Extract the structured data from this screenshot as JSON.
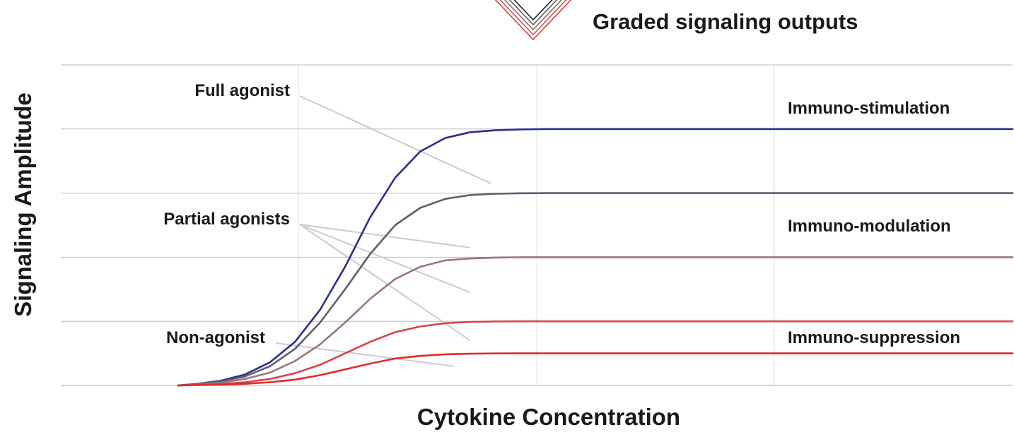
{
  "chart_data": {
    "type": "line",
    "title": "Graded signaling outputs",
    "xlabel": "Cytokine Concentration",
    "ylabel": "Signaling Amplitude",
    "xlim": [
      0,
      1
    ],
    "ylim": [
      0,
      5
    ],
    "grid": true,
    "axis_ticks": false,
    "x_curve": [
      0,
      0.02,
      0.05,
      0.08,
      0.11,
      0.14,
      0.17,
      0.2,
      0.23,
      0.26,
      0.29,
      0.32,
      0.35,
      0.38,
      0.41,
      0.44,
      0.47,
      0.5,
      0.53,
      0.56,
      0.59,
      0.62,
      0.65,
      0.68,
      0.71,
      0.74,
      0.77,
      0.8,
      0.85,
      0.9,
      0.95,
      1.0
    ],
    "series": [
      {
        "key": "full",
        "color": "#2a2f8a"
      },
      {
        "key": "partial1",
        "color": "#5e5e6e"
      },
      {
        "key": "partial2",
        "color": "#9b7676"
      },
      {
        "key": "partial3",
        "color": "#d8434a"
      },
      {
        "key": "non",
        "color": "#e02a2a"
      }
    ],
    "series_values": [
      [
        0,
        0.02,
        0.07,
        0.17,
        0.36,
        0.68,
        1.18,
        1.85,
        2.62,
        3.24,
        3.65,
        3.86,
        3.95,
        3.98,
        3.995,
        4,
        4,
        4,
        4,
        4,
        4,
        4,
        4,
        4,
        4,
        4,
        4,
        4,
        4,
        4,
        4,
        4
      ],
      [
        0,
        0.02,
        0.06,
        0.14,
        0.3,
        0.57,
        0.98,
        1.5,
        2.05,
        2.5,
        2.77,
        2.91,
        2.97,
        2.99,
        2.998,
        3,
        3,
        3,
        3,
        3,
        3,
        3,
        3,
        3,
        3,
        3,
        3,
        3,
        3,
        3,
        3,
        3
      ],
      [
        0,
        0.01,
        0.04,
        0.1,
        0.2,
        0.38,
        0.64,
        0.98,
        1.35,
        1.66,
        1.85,
        1.95,
        1.98,
        1.995,
        2,
        2,
        2,
        2,
        2,
        2,
        2,
        2,
        2,
        2,
        2,
        2,
        2,
        2,
        2,
        2,
        2,
        2
      ],
      [
        0,
        0.01,
        0.02,
        0.05,
        0.1,
        0.19,
        0.32,
        0.5,
        0.68,
        0.83,
        0.92,
        0.97,
        0.99,
        0.998,
        1,
        1,
        1,
        1,
        1,
        1,
        1,
        1,
        1,
        1,
        1,
        1,
        1,
        1,
        1,
        1,
        1,
        1
      ],
      [
        0,
        0.005,
        0.01,
        0.025,
        0.05,
        0.09,
        0.16,
        0.25,
        0.34,
        0.42,
        0.46,
        0.485,
        0.495,
        0.499,
        0.5,
        0.5,
        0.5,
        0.5,
        0.5,
        0.5,
        0.5,
        0.5,
        0.5,
        0.5,
        0.5,
        0.5,
        0.5,
        0.5,
        0.5,
        0.5,
        0.5,
        0.5
      ]
    ],
    "annotations": [
      {
        "text": "Full agonist",
        "targets": [
          [
            0.375,
            3.15
          ]
        ]
      },
      {
        "text": "Partial agonists",
        "targets": [
          [
            0.35,
            2.15
          ],
          [
            0.35,
            1.45
          ],
          [
            0.35,
            0.7
          ]
        ]
      },
      {
        "text": "Non-agonist",
        "targets": [
          [
            0.33,
            0.3
          ]
        ]
      }
    ],
    "region_labels": [
      "Immuno-stimulation",
      "Immuno-modulation",
      "Immuno-suppression"
    ],
    "legend": {
      "text": "Graded signaling outputs",
      "placement": "top-center",
      "colors": [
        "#1f1f1f",
        "#5a5a6a",
        "#8a6f6f",
        "#b85c5c",
        "#d83a3a"
      ]
    }
  }
}
